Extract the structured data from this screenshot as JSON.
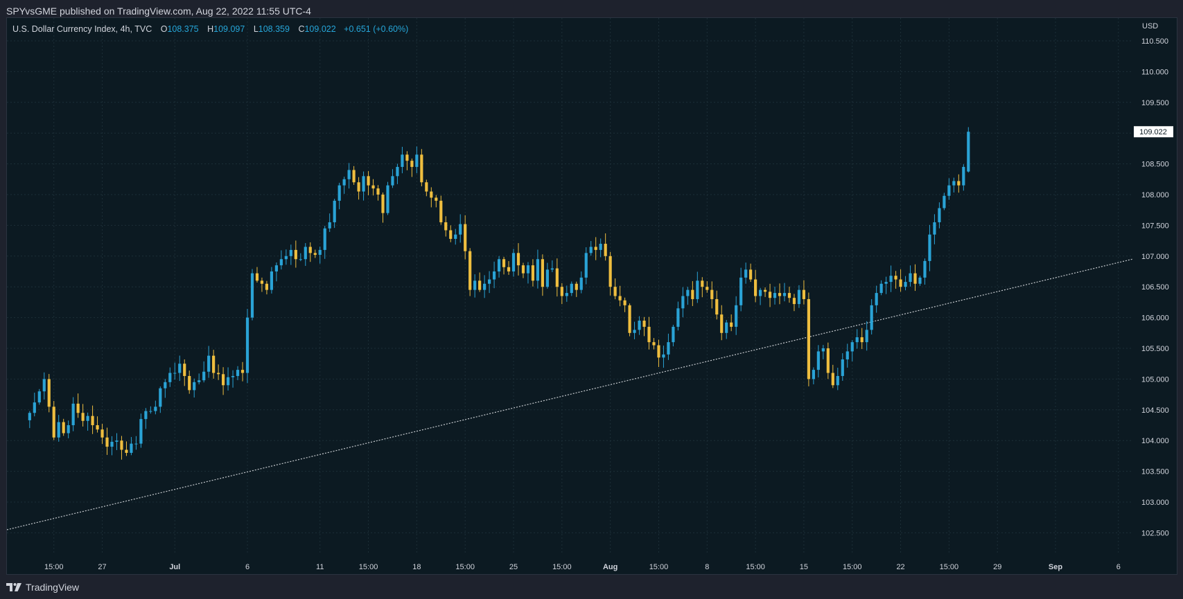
{
  "header": {
    "published_line": "SPYvsGME published on TradingView.com, Aug 22, 2022 11:55 UTC-4"
  },
  "legend": {
    "symbol": "U.S. Dollar Currency Index, 4h, TVC",
    "open_label": "O",
    "open": "108.375",
    "high_label": "H",
    "high": "109.097",
    "low_label": "L",
    "low": "108.359",
    "close_label": "C",
    "close": "109.022",
    "change": "+0.651 (+0.60%)"
  },
  "price_axis": {
    "currency": "USD",
    "last_price_tag": "109.022"
  },
  "footer": {
    "brand": "TradingView"
  },
  "colors": {
    "up": "#2aa3d6",
    "down": "#efbe3f",
    "background": "#0c1a22",
    "grid": "#1d2f38",
    "trendline": "#c8ccd0",
    "text": "#d1d4dc"
  },
  "chart_data": {
    "type": "candlestick",
    "timeframe": "4h",
    "ylim": [
      102.2,
      110.8
    ],
    "y_ticks": [
      "110.500",
      "110.000",
      "109.500",
      "109.000",
      "108.500",
      "108.000",
      "107.500",
      "107.000",
      "106.500",
      "106.000",
      "105.500",
      "105.000",
      "104.500",
      "104.000",
      "103.500",
      "103.000",
      "102.500"
    ],
    "x_ticks": [
      {
        "label": "15:00",
        "idx": 5
      },
      {
        "label": "27",
        "idx": 15
      },
      {
        "label": "Jul",
        "idx": 30,
        "bold": true
      },
      {
        "label": "6",
        "idx": 45
      },
      {
        "label": "11",
        "idx": 60
      },
      {
        "label": "15:00",
        "idx": 70
      },
      {
        "label": "18",
        "idx": 80
      },
      {
        "label": "15:00",
        "idx": 90
      },
      {
        "label": "25",
        "idx": 100
      },
      {
        "label": "15:00",
        "idx": 110
      },
      {
        "label": "Aug",
        "idx": 120,
        "bold": true
      },
      {
        "label": "15:00",
        "idx": 130
      },
      {
        "label": "8",
        "idx": 140
      },
      {
        "label": "15:00",
        "idx": 150
      },
      {
        "label": "15",
        "idx": 160
      },
      {
        "label": "15:00",
        "idx": 170
      },
      {
        "label": "22",
        "idx": 180
      },
      {
        "label": "15:00",
        "idx": 190
      },
      {
        "label": "29",
        "idx": 200
      },
      {
        "label": "Sep",
        "idx": 212,
        "bold": true
      },
      {
        "label": "6",
        "idx": 225
      }
    ],
    "x_range": [
      -4.7,
      227.9
    ],
    "trendline": {
      "start": {
        "idx": -4.7,
        "price": 102.55
      },
      "end": {
        "idx": 227.9,
        "price": 106.95
      }
    },
    "closes": [
      104.45,
      104.62,
      104.8,
      105.0,
      104.55,
      104.05,
      104.3,
      104.12,
      104.25,
      104.6,
      104.45,
      104.32,
      104.4,
      104.25,
      104.18,
      104.05,
      103.9,
      103.98,
      104.0,
      103.85,
      103.8,
      103.95,
      103.95,
      104.35,
      104.48,
      104.48,
      104.55,
      104.85,
      104.95,
      105.1,
      105.1,
      105.25,
      105.05,
      104.82,
      104.95,
      104.98,
      105.12,
      105.38,
      105.1,
      105.08,
      104.9,
      105.03,
      105.05,
      105.15,
      105.1,
      106.0,
      106.72,
      106.6,
      106.55,
      106.45,
      106.75,
      106.85,
      106.95,
      107.0,
      107.1,
      106.95,
      106.95,
      107.15,
      107.05,
      107.02,
      107.1,
      107.45,
      107.55,
      107.9,
      108.15,
      108.25,
      108.4,
      108.2,
      108.05,
      108.3,
      108.15,
      108.1,
      108.0,
      107.7,
      108.15,
      108.3,
      108.45,
      108.65,
      108.55,
      108.45,
      108.65,
      108.2,
      108.05,
      107.95,
      107.9,
      107.55,
      107.42,
      107.28,
      107.35,
      107.52,
      107.08,
      106.45,
      106.6,
      106.45,
      106.55,
      106.62,
      106.75,
      106.95,
      106.82,
      106.75,
      107.05,
      106.85,
      106.72,
      106.85,
      106.6,
      106.95,
      106.5,
      106.78,
      106.8,
      106.5,
      106.35,
      106.4,
      106.55,
      106.45,
      106.65,
      107.05,
      107.15,
      107.1,
      107.2,
      107.0,
      106.5,
      106.35,
      106.28,
      106.2,
      105.75,
      105.8,
      105.95,
      105.85,
      105.6,
      105.55,
      105.35,
      105.4,
      105.6,
      105.85,
      106.15,
      106.35,
      106.45,
      106.3,
      106.6,
      106.5,
      106.45,
      106.3,
      106.05,
      105.75,
      105.92,
      105.85,
      106.2,
      106.65,
      106.78,
      106.62,
      106.35,
      106.45,
      106.42,
      106.32,
      106.4,
      106.35,
      106.4,
      106.32,
      106.22,
      106.45,
      106.3,
      105.0,
      105.15,
      105.45,
      105.5,
      105.1,
      104.9,
      105.05,
      105.32,
      105.45,
      105.6,
      105.68,
      105.6,
      105.8,
      106.2,
      106.4,
      106.55,
      106.58,
      106.68,
      106.62,
      106.5,
      106.58,
      106.72,
      106.55,
      106.65,
      106.92,
      107.35,
      107.55,
      107.78,
      107.98,
      108.15,
      108.22,
      108.15,
      108.45,
      109.022
    ]
  }
}
